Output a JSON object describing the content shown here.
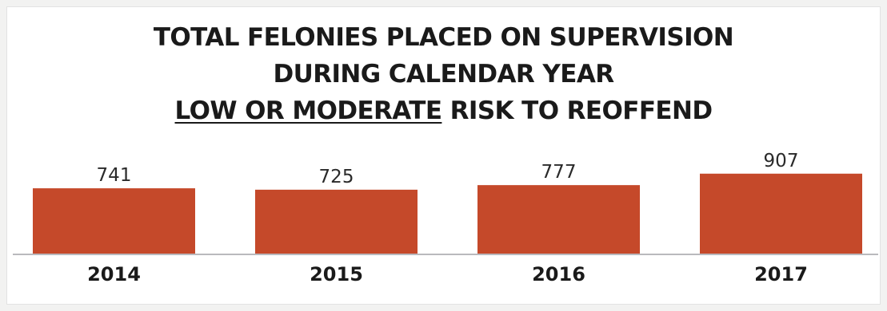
{
  "chart_data": {
    "type": "bar",
    "title_lines": [
      "TOTAL FELONIES PLACED ON SUPERVISION",
      "DURING CALENDAR YEAR"
    ],
    "title_line3_underlined": "LOW OR MODERATE",
    "title_line3_rest": " RISK TO REOFFEND",
    "categories": [
      "2014",
      "2015",
      "2016",
      "2017"
    ],
    "values": [
      741,
      725,
      777,
      907
    ],
    "data_labels": [
      "741",
      "725",
      "777",
      "907"
    ],
    "xlabel": "",
    "ylabel": "",
    "grid": false,
    "legend": "none",
    "bar_color": "#c5492a",
    "baseline_color": "#b9b9bd"
  }
}
